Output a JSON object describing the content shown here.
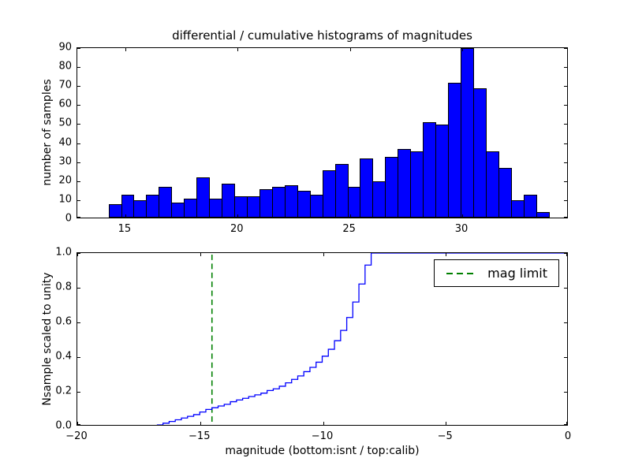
{
  "figure": {
    "background": "#ffffff"
  },
  "chart_data": [
    {
      "type": "bar",
      "subplot": "top",
      "title": "differential / cumulative histograms of magnitudes",
      "xlabel": "",
      "ylabel": "number of samples",
      "xlim": [
        12.86,
        34.74
      ],
      "ylim": [
        0,
        90
      ],
      "xticks": [
        15,
        20,
        25,
        30
      ],
      "xtick_labels": [
        "15",
        "20",
        "25",
        "30"
      ],
      "yticks": [
        0,
        10,
        20,
        30,
        40,
        50,
        60,
        70,
        80,
        90
      ],
      "ytick_labels": [
        "0",
        "10",
        "20",
        "30",
        "40",
        "50",
        "60",
        "70",
        "80",
        "90"
      ],
      "grid": false,
      "bar_color": "#0000ff",
      "bar_edge_color": "#000000",
      "bin_start": 14.25,
      "bin_width": 0.56,
      "values": [
        7,
        12,
        9,
        12,
        16,
        8,
        10,
        21,
        10,
        18,
        11,
        11,
        15,
        16,
        17,
        14,
        12,
        25,
        28,
        16,
        31,
        19,
        32,
        36,
        35,
        50,
        49,
        71,
        89,
        68,
        35,
        26,
        9,
        12,
        3
      ]
    },
    {
      "type": "line",
      "subplot": "bottom",
      "title": "",
      "xlabel": "magnitude (bottom:isnt / top:calib)",
      "ylabel": "Nsample scaled to unity",
      "xlim": [
        -20,
        0
      ],
      "ylim": [
        0.0,
        1.0
      ],
      "xticks": [
        -20,
        -15,
        -10,
        -5,
        0
      ],
      "xtick_labels": [
        "−20",
        "−15",
        "−10",
        "−5",
        "0"
      ],
      "yticks": [
        0.0,
        0.2,
        0.4,
        0.6,
        0.8,
        1.0
      ],
      "ytick_labels": [
        "0.0",
        "0.2",
        "0.4",
        "0.6",
        "0.8",
        "1.0"
      ],
      "grid": false,
      "series": [
        {
          "name": "cumulative histogram",
          "color": "#0000ff",
          "line_style": "solid-step",
          "x": [
            -16.75,
            -16.5,
            -16.25,
            -16.0,
            -15.75,
            -15.5,
            -15.25,
            -15.0,
            -14.75,
            -14.5,
            -14.25,
            -14.0,
            -13.75,
            -13.5,
            -13.25,
            -13.0,
            -12.75,
            -12.5,
            -12.25,
            -12.0,
            -11.75,
            -11.5,
            -11.25,
            -11.0,
            -10.75,
            -10.5,
            -10.25,
            -10.0,
            -9.75,
            -9.5,
            -9.25,
            -9.0,
            -8.75,
            -8.5,
            -8.25,
            -8.0,
            0.0
          ],
          "y": [
            0.0,
            0.01,
            0.02,
            0.03,
            0.04,
            0.05,
            0.06,
            0.075,
            0.09,
            0.1,
            0.11,
            0.12,
            0.135,
            0.145,
            0.155,
            0.165,
            0.175,
            0.185,
            0.2,
            0.21,
            0.225,
            0.245,
            0.265,
            0.285,
            0.31,
            0.335,
            0.365,
            0.4,
            0.44,
            0.49,
            0.55,
            0.625,
            0.715,
            0.82,
            0.93,
            1.0,
            1.0
          ]
        },
        {
          "name": "mag limit",
          "color": "#008000",
          "line_style": "dashed-vertical",
          "x_position": -14.5
        }
      ],
      "legend": {
        "label": "mag limit",
        "position": "upper right"
      }
    }
  ]
}
